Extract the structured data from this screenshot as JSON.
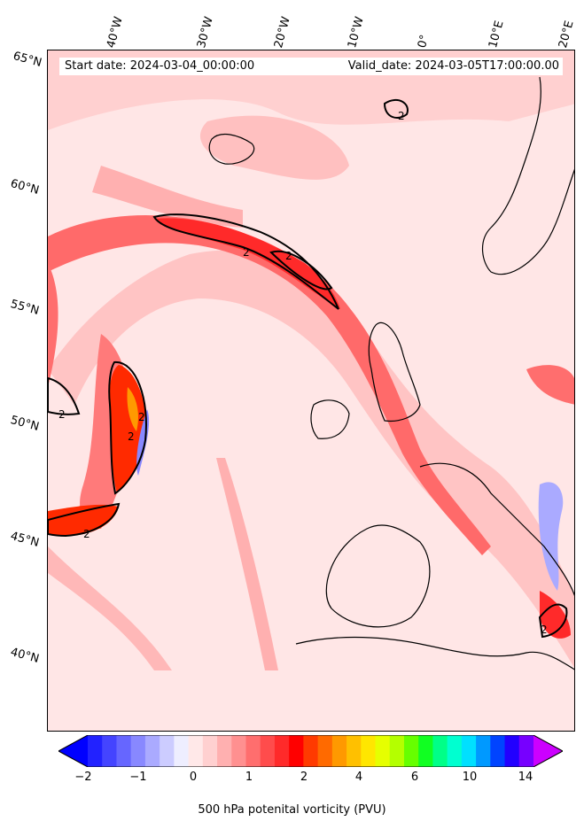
{
  "header": {
    "start_date": "Start date: 2024-03-04_00:00:00",
    "valid_date": "Valid_date: 2024-03-05T17:00:00.00"
  },
  "lat_labels": [
    "65°N",
    "60°N",
    "55°N",
    "50°N",
    "45°N",
    "40°N"
  ],
  "lon_labels": [
    "40°W",
    "30°W",
    "20°W",
    "10°W",
    "0°",
    "10°E",
    "20°E"
  ],
  "contour_labels": [
    "2",
    "2",
    "2",
    "2",
    "2",
    "2",
    "2",
    "2"
  ],
  "colorbar": {
    "label": "500 hPa potenital vorticity (PVU)",
    "ticks": [
      "−2",
      "−1",
      "0",
      "1",
      "2",
      "4",
      "6",
      "10",
      "14"
    ],
    "colors": [
      "#0000ff",
      "#2222ff",
      "#4444ff",
      "#6666ff",
      "#8888ff",
      "#aaaaff",
      "#ccccff",
      "#eeeeff",
      "#ffe8e8",
      "#ffd0d0",
      "#ffb0b0",
      "#ff9090",
      "#ff6e6e",
      "#ff4c4c",
      "#ff2a2a",
      "#ff0000",
      "#ff3a00",
      "#ff6a00",
      "#ff9900",
      "#ffc000",
      "#ffe600",
      "#e6ff00",
      "#b4ff00",
      "#66ff00",
      "#11ff22",
      "#00ff88",
      "#00ffd0",
      "#00e0ff",
      "#0099ff",
      "#0044ff",
      "#2200ff",
      "#7700ff",
      "#cc00ff"
    ]
  }
}
